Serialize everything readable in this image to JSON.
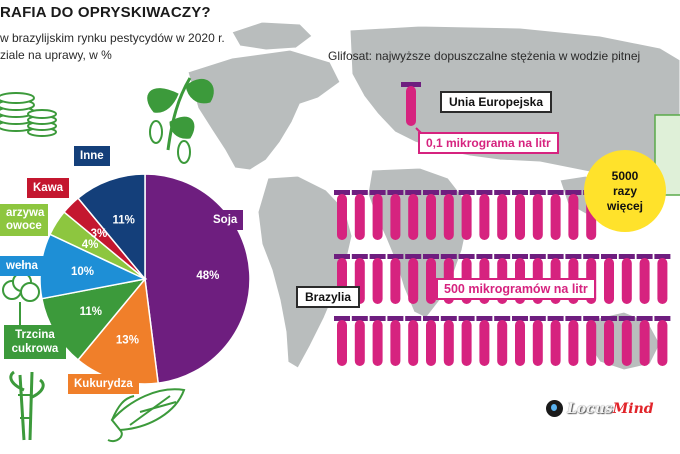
{
  "header": {
    "title": "RAFIA DO OPRYSKIWACZY?",
    "subtitle_line1": "w brazylijskim rynku pestycydów w 2020 r.",
    "subtitle_line2": "ziale na uprawy, w %"
  },
  "glifosat": {
    "heading": "Glifosat: najwyższe dopuszczalne stężenia w wodzie pitnej",
    "eu_label": "Unia Europejska",
    "eu_value": "0,1 mikrograma na litr",
    "brazil_label": "Brazylia",
    "brazil_value": "500 mikrogramów na litr",
    "ratio_line1": "5000",
    "ratio_line2": "razy",
    "ratio_line3": "więcej"
  },
  "colors": {
    "soja": "#6e1e7f",
    "kukurydza": "#f07f2a",
    "trzcina": "#3c9a3b",
    "bawelna": "#1e8fd6",
    "warzywa": "#8dc63f",
    "kawa": "#c4172f",
    "inne": "#143f7a",
    "tube": "#d6237f",
    "tube_cap": "#6e1e7f",
    "map": "#b9bdbd",
    "circle": "#ffe22b"
  },
  "icons": [
    "coins-icon",
    "soy-plant-icon",
    "corn-icon",
    "cotton-icon",
    "sugarcane-icon",
    "test-tube-icon",
    "locusmind-logo-icon"
  ],
  "chart_data": {
    "type": "pie",
    "title": "",
    "categories": [
      "Soja",
      "Kukurydza",
      "Trzcina cukrowa",
      "wełna",
      "arzywa owoce",
      "Kawa",
      "Inne"
    ],
    "values": [
      48,
      13,
      11,
      10,
      4,
      3,
      11
    ],
    "value_labels": [
      "48%",
      "13%",
      "11%",
      "10%",
      "4%",
      "3%",
      "11%"
    ],
    "legend": "none"
  },
  "logo": {
    "part1": "Locus",
    "part2": "Mind"
  }
}
